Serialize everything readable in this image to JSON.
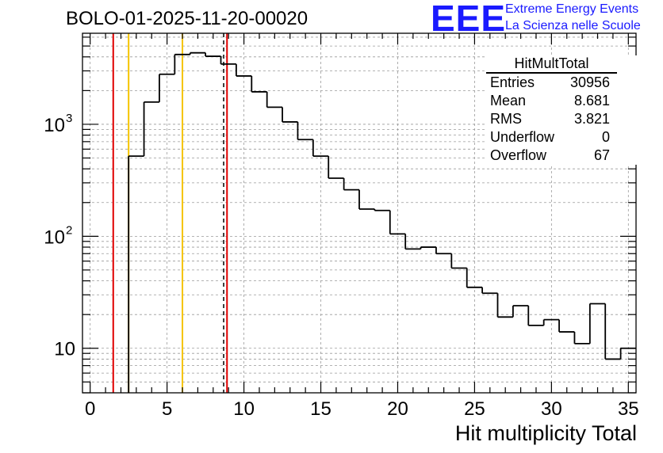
{
  "header": {
    "title": "BOLO-01-2025-11-20-00020"
  },
  "logo": {
    "text": "EEE",
    "line1": "Extreme Energy Events",
    "line2": "La Scienza nelle Scuole",
    "color": "#1a1aff"
  },
  "stats": {
    "title": "HitMultTotal",
    "rows": [
      {
        "label": "Entries",
        "value": "30956"
      },
      {
        "label": "Mean",
        "value": "8.681"
      },
      {
        "label": "RMS",
        "value": "3.821"
      },
      {
        "label": "Underflow",
        "value": "0"
      },
      {
        "label": "Overflow",
        "value": "67"
      }
    ]
  },
  "chart_data": {
    "type": "histogram",
    "title": "BOLO-01-2025-11-20-00020",
    "xlabel": "Hit multiplicity Total",
    "ylabel": "",
    "yscale": "log",
    "xlim": [
      -0.5,
      35.5
    ],
    "ylim": [
      4,
      6500
    ],
    "grid": true,
    "xticks": [
      0,
      5,
      10,
      15,
      20,
      25,
      30,
      35
    ],
    "yticks": [
      {
        "value": 10,
        "base": "10",
        "exp": ""
      },
      {
        "value": 100,
        "base": "10",
        "exp": "2"
      },
      {
        "value": 1000,
        "base": "10",
        "exp": "3"
      }
    ],
    "bin_edges_start": 2.5,
    "bin_width": 1,
    "counts": [
      520,
      1580,
      2800,
      4200,
      4350,
      4050,
      3450,
      2700,
      1950,
      1420,
      1050,
      730,
      520,
      330,
      260,
      175,
      170,
      105,
      77,
      80,
      70,
      52,
      35,
      31,
      19,
      24,
      16,
      18,
      14,
      11,
      25,
      8,
      10
    ],
    "vertical_lines": [
      {
        "x": 1.5,
        "color": "#e00000",
        "style": "solid"
      },
      {
        "x": 2.5,
        "color": "#f5c400",
        "style": "solid"
      },
      {
        "x": 6.0,
        "color": "#f5c400",
        "style": "solid"
      },
      {
        "x": 8.681,
        "color": "#000000",
        "style": "dashed"
      },
      {
        "x": 8.9,
        "color": "#e00000",
        "style": "solid"
      }
    ]
  }
}
